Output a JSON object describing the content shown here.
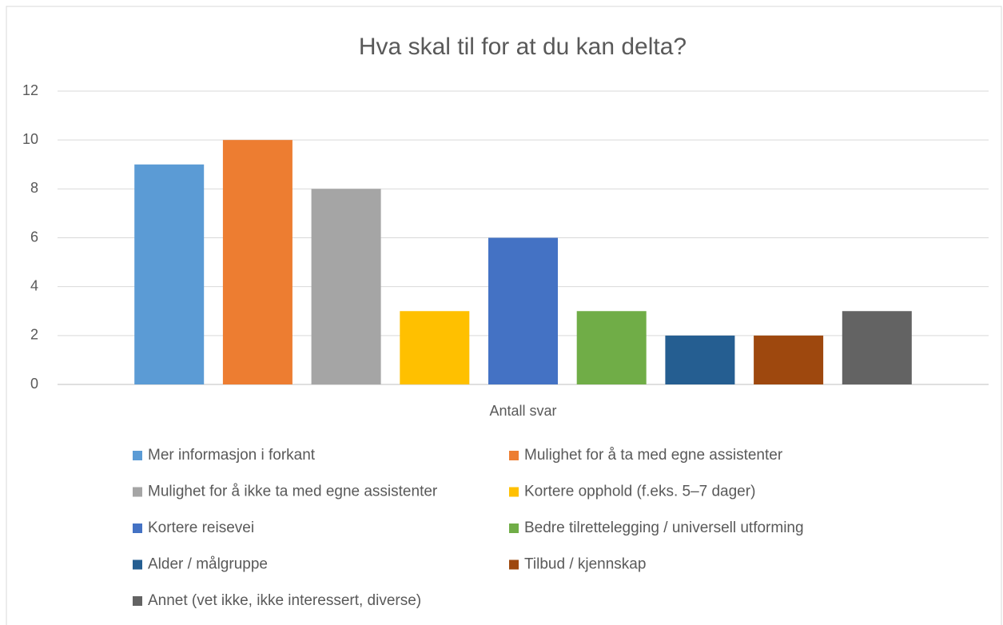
{
  "chart_data": {
    "type": "bar",
    "title": "Hva skal til for at du kan delta?",
    "categories": [
      "Antall svar"
    ],
    "series": [
      {
        "name": "Mer informasjon i forkant",
        "color": "#5b9bd5",
        "values": [
          9
        ]
      },
      {
        "name": "Mulighet for å ta med egne assistenter",
        "color": "#ed7d31",
        "values": [
          10
        ]
      },
      {
        "name": "Mulighet for å ikke ta med egne assistenter",
        "color": "#a5a5a5",
        "values": [
          8
        ]
      },
      {
        "name": "Kortere opphold (f.eks. 5–7 dager)",
        "color": "#ffc000",
        "values": [
          3
        ]
      },
      {
        "name": "Kortere reisevei",
        "color": "#4472c4",
        "values": [
          6
        ]
      },
      {
        "name": "Bedre tilrettelegging / universell utforming",
        "color": "#70ad47",
        "values": [
          3
        ]
      },
      {
        "name": "Alder / målgruppe",
        "color": "#255e91",
        "values": [
          2
        ]
      },
      {
        "name": "Tilbud / kjennskap",
        "color": "#9e480e",
        "values": [
          2
        ]
      },
      {
        "name": "Annet (vet ikke, ikke interessert, diverse)",
        "color": "#636363",
        "values": [
          3
        ]
      }
    ],
    "ylim": [
      0,
      12
    ],
    "yticks": [
      0,
      2,
      4,
      6,
      8,
      10,
      12
    ],
    "grid": true,
    "legend": "bottom"
  }
}
